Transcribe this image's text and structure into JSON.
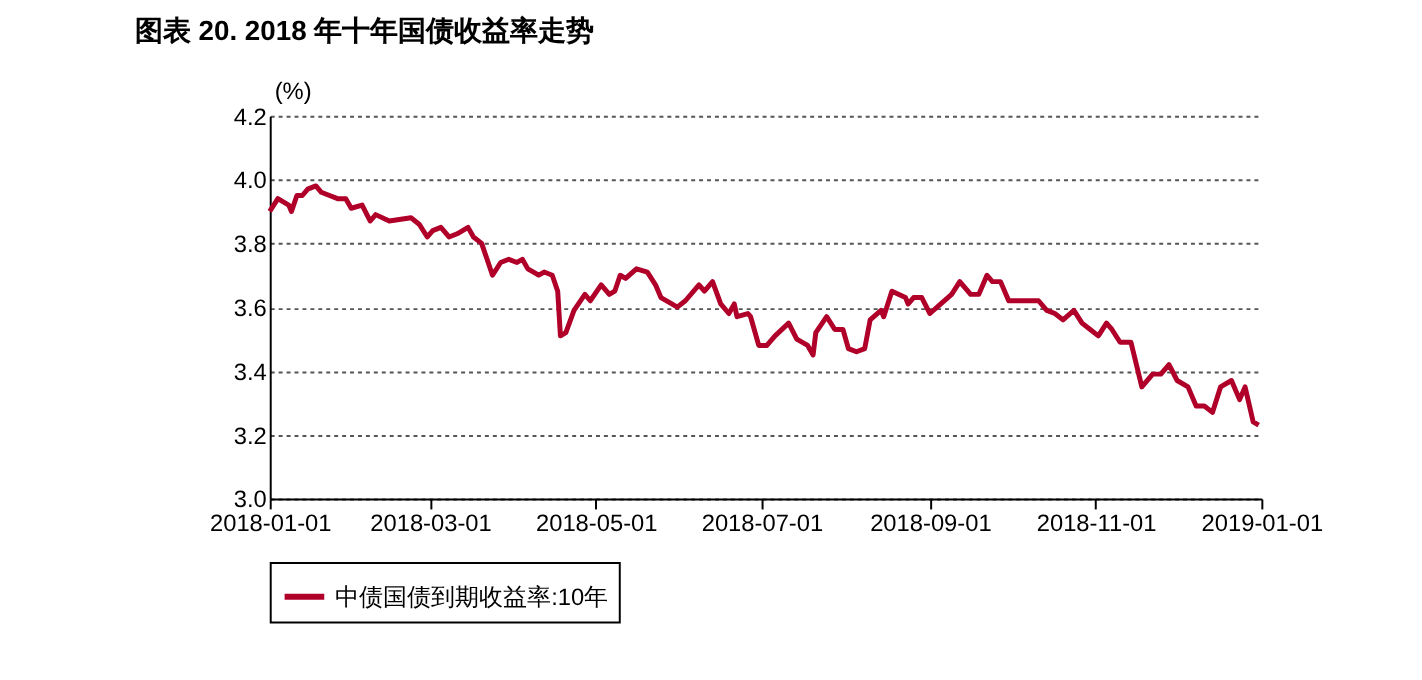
{
  "chart_data": {
    "type": "line",
    "title": "图表 20. 2018 年十年国债收益率走势",
    "ylabel": "(%)",
    "x": [
      "2018-01-01",
      "2018-01-04",
      "2018-01-08",
      "2018-01-09",
      "2018-01-11",
      "2018-01-13",
      "2018-01-15",
      "2018-01-18",
      "2018-01-20",
      "2018-01-23",
      "2018-01-26",
      "2018-01-29",
      "2018-01-31",
      "2018-02-04",
      "2018-02-07",
      "2018-02-09",
      "2018-02-14",
      "2018-02-22",
      "2018-02-25",
      "2018-02-28",
      "2018-03-02",
      "2018-03-05",
      "2018-03-08",
      "2018-03-11",
      "2018-03-15",
      "2018-03-17",
      "2018-03-20",
      "2018-03-22",
      "2018-03-24",
      "2018-03-27",
      "2018-03-30",
      "2018-04-02",
      "2018-04-04",
      "2018-04-06",
      "2018-04-10",
      "2018-04-12",
      "2018-04-15",
      "2018-04-17",
      "2018-04-18",
      "2018-04-20",
      "2018-04-23",
      "2018-04-27",
      "2018-04-29",
      "2018-05-03",
      "2018-05-06",
      "2018-05-08",
      "2018-05-10",
      "2018-05-12",
      "2018-05-16",
      "2018-05-20",
      "2018-05-23",
      "2018-05-25",
      "2018-05-29",
      "2018-05-31",
      "2018-06-03",
      "2018-06-08",
      "2018-06-10",
      "2018-06-13",
      "2018-06-16",
      "2018-06-19",
      "2018-06-21",
      "2018-06-22",
      "2018-06-26",
      "2018-06-27",
      "2018-06-30",
      "2018-07-03",
      "2018-07-06",
      "2018-07-11",
      "2018-07-14",
      "2018-07-18",
      "2018-07-20",
      "2018-07-21",
      "2018-07-25",
      "2018-07-28",
      "2018-07-31",
      "2018-08-02",
      "2018-08-05",
      "2018-08-08",
      "2018-08-10",
      "2018-08-14",
      "2018-08-15",
      "2018-08-18",
      "2018-08-23",
      "2018-08-24",
      "2018-08-26",
      "2018-08-29",
      "2018-09-01",
      "2018-09-05",
      "2018-09-09",
      "2018-09-12",
      "2018-09-16",
      "2018-09-19",
      "2018-09-22",
      "2018-09-24",
      "2018-09-27",
      "2018-09-30",
      "2018-10-05",
      "2018-10-11",
      "2018-10-14",
      "2018-10-17",
      "2018-10-20",
      "2018-10-24",
      "2018-10-27",
      "2018-10-30",
      "2018-11-02",
      "2018-11-05",
      "2018-11-07",
      "2018-11-10",
      "2018-11-14",
      "2018-11-18",
      "2018-11-22",
      "2018-11-25",
      "2018-11-28",
      "2018-12-01",
      "2018-12-05",
      "2018-12-08",
      "2018-12-11",
      "2018-12-14",
      "2018-12-17",
      "2018-12-21",
      "2018-12-24",
      "2018-12-26",
      "2018-12-29",
      "2018-12-31"
    ],
    "series": [
      {
        "name": "中债国债到期收益率:10年",
        "color": "#b0002a",
        "values": [
          3.9,
          3.94,
          3.92,
          3.9,
          3.95,
          3.95,
          3.97,
          3.98,
          3.96,
          3.95,
          3.94,
          3.94,
          3.91,
          3.92,
          3.87,
          3.89,
          3.87,
          3.88,
          3.86,
          3.82,
          3.84,
          3.85,
          3.82,
          3.83,
          3.85,
          3.82,
          3.8,
          3.75,
          3.7,
          3.74,
          3.75,
          3.74,
          3.75,
          3.72,
          3.7,
          3.71,
          3.7,
          3.65,
          3.51,
          3.52,
          3.59,
          3.64,
          3.62,
          3.67,
          3.64,
          3.65,
          3.7,
          3.69,
          3.72,
          3.71,
          3.67,
          3.63,
          3.61,
          3.6,
          3.62,
          3.67,
          3.65,
          3.68,
          3.61,
          3.58,
          3.61,
          3.57,
          3.58,
          3.57,
          3.48,
          3.48,
          3.51,
          3.55,
          3.5,
          3.48,
          3.45,
          3.52,
          3.57,
          3.53,
          3.53,
          3.47,
          3.46,
          3.47,
          3.56,
          3.59,
          3.57,
          3.65,
          3.63,
          3.61,
          3.63,
          3.63,
          3.58,
          3.61,
          3.64,
          3.68,
          3.64,
          3.64,
          3.7,
          3.68,
          3.68,
          3.62,
          3.62,
          3.62,
          3.59,
          3.58,
          3.56,
          3.59,
          3.55,
          3.53,
          3.51,
          3.55,
          3.53,
          3.49,
          3.49,
          3.35,
          3.39,
          3.39,
          3.42,
          3.37,
          3.35,
          3.29,
          3.29,
          3.27,
          3.35,
          3.37,
          3.31,
          3.35,
          3.24,
          3.23
        ]
      }
    ],
    "xlim": [
      "2018-01-01",
      "2019-01-01"
    ],
    "xticks": [
      "2018-01-01",
      "2018-03-01",
      "2018-05-01",
      "2018-07-01",
      "2018-09-01",
      "2018-11-01",
      "2019-01-01"
    ],
    "ylim": [
      3.0,
      4.2
    ],
    "yticks": [
      {
        "value": 3.0,
        "label": "3.0"
      },
      {
        "value": 3.2,
        "label": "3.2"
      },
      {
        "value": 3.4,
        "label": "3.4"
      },
      {
        "value": 3.6,
        "label": "3.6"
      },
      {
        "value": 3.8,
        "label": "3.8"
      },
      {
        "value": 4.0,
        "label": "4.0"
      },
      {
        "value": 4.2,
        "label": "4.2"
      }
    ],
    "grid": "y",
    "legend": "bottom",
    "marker": "none",
    "line_style": "solid"
  }
}
